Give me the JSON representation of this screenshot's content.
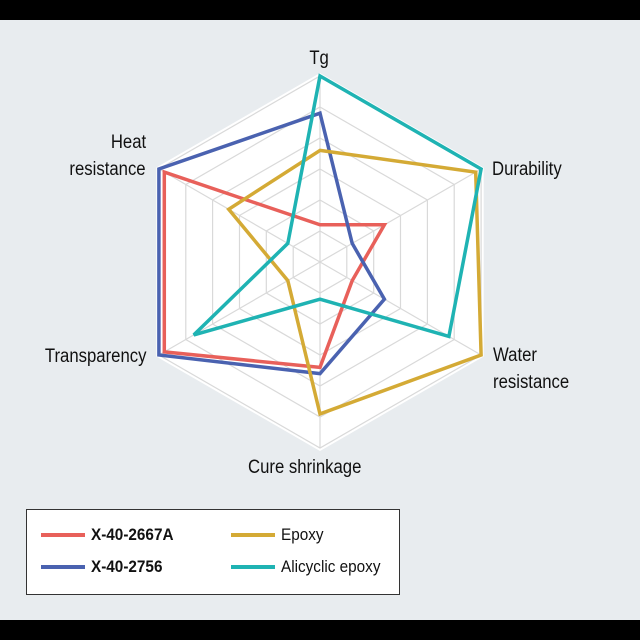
{
  "chart_data": {
    "type": "radar",
    "title": "",
    "axes": [
      "Tg",
      "Durability",
      "Water resistance",
      "Cure shrinkage",
      "Transparency",
      "Heat resistance"
    ],
    "scale": {
      "min": 0,
      "max": 6,
      "rings": 6
    },
    "grid": true,
    "legend_position": "bottom-left",
    "series": [
      {
        "name": "X-40-2667A",
        "color": "#e8605a",
        "values": [
          1.2,
          2.4,
          1.2,
          3.4,
          5.8,
          5.8
        ]
      },
      {
        "name": "X-40-2756",
        "color": "#4a62b0",
        "values": [
          4.8,
          1.2,
          2.4,
          3.6,
          6.0,
          6.0
        ]
      },
      {
        "name": "Epoxy",
        "color": "#d4aa35",
        "values": [
          3.6,
          5.8,
          6.0,
          4.9,
          1.2,
          3.4
        ]
      },
      {
        "name": "Alicyclic epoxy",
        "color": "#1fb3b3",
        "values": [
          6.0,
          6.0,
          4.8,
          1.2,
          4.7,
          1.2
        ]
      }
    ]
  },
  "labels": {
    "tg": "Tg",
    "durability": "Durability",
    "water_1": "Water",
    "water_2": "resistance",
    "cure": "Cure shrinkage",
    "transparency": "Transparency",
    "heat_1": "Heat",
    "heat_2": "resistance"
  },
  "legend": [
    {
      "label": "X-40-2667A",
      "color": "#e8605a"
    },
    {
      "label": "Epoxy",
      "color": "#d4aa35"
    },
    {
      "label": "X-40-2756",
      "color": "#4a62b0"
    },
    {
      "label": "Alicyclic epoxy",
      "color": "#1fb3b3"
    }
  ]
}
